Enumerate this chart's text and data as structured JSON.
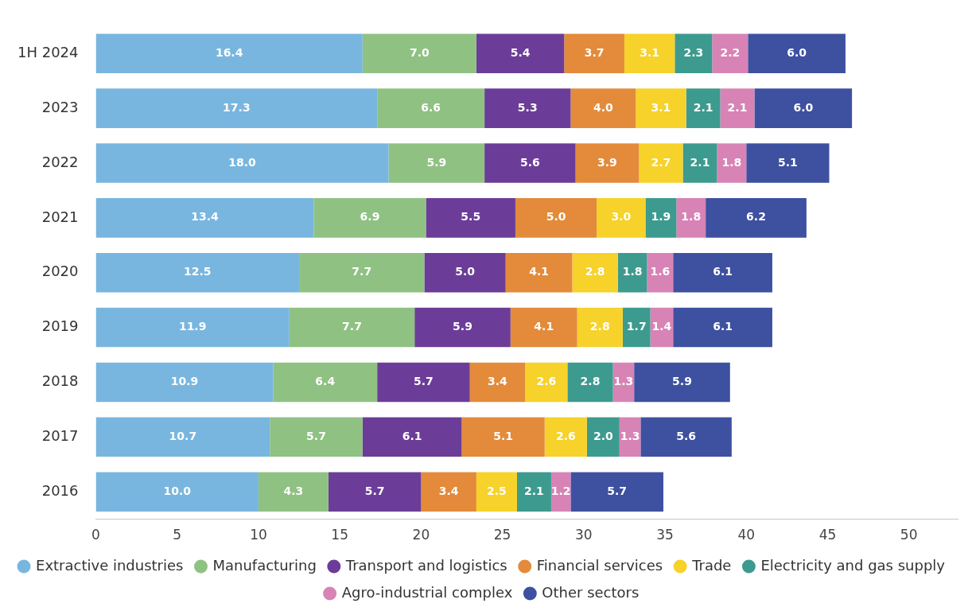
{
  "chart_data": {
    "type": "bar",
    "orientation": "horizontal",
    "stacked": true,
    "legend": "bottom",
    "categories": [
      "1H 2024",
      "2023",
      "2022",
      "2021",
      "2020",
      "2019",
      "2018",
      "2017",
      "2016"
    ],
    "xlim": [
      0,
      53
    ],
    "xticks": [
      0,
      5,
      10,
      15,
      20,
      25,
      30,
      35,
      40,
      45,
      50
    ],
    "series": [
      {
        "name": "Extractive industries",
        "color": "#79b6df",
        "values": [
          16.4,
          17.3,
          18.0,
          13.4,
          12.5,
          11.9,
          10.9,
          10.7,
          10.0
        ],
        "value_labels": [
          "16.4",
          "17.3",
          "18.0",
          "13.4",
          "12.5",
          "11.9",
          "10.9",
          "10.7",
          "10.0"
        ]
      },
      {
        "name": "Manufacturing",
        "color": "#8fc183",
        "values": [
          7.0,
          6.6,
          5.9,
          6.9,
          7.7,
          7.7,
          6.4,
          5.7,
          4.3
        ],
        "value_labels": [
          "7.0",
          "6.6",
          "5.9",
          "6.9",
          "7.7",
          "7.7",
          "6.4",
          "5.7",
          "4.3"
        ]
      },
      {
        "name": "Transport and logistics",
        "color": "#6b3d98",
        "values": [
          5.4,
          5.3,
          5.6,
          5.5,
          5.0,
          5.9,
          5.7,
          6.1,
          5.7
        ],
        "value_labels": [
          "5.4",
          "5.3",
          "5.6",
          "5.5",
          "5.0",
          "5.9",
          "5.7",
          "6.1",
          "5.7"
        ]
      },
      {
        "name": "Financial services",
        "color": "#e38b3b",
        "values": [
          3.7,
          4.0,
          3.9,
          5.0,
          4.1,
          4.1,
          3.4,
          5.1,
          3.4
        ],
        "value_labels": [
          "3.7",
          "4.0",
          "3.9",
          "5.0",
          "4.1",
          "4.1",
          "3.4",
          "5.1",
          "3.4"
        ]
      },
      {
        "name": "Trade",
        "color": "#f6d22a",
        "values": [
          3.1,
          3.1,
          2.7,
          3.0,
          2.8,
          2.8,
          2.6,
          2.6,
          2.5
        ],
        "value_labels": [
          "3.1",
          "3.1",
          "2.7",
          "3.0",
          "2.8",
          "2.8",
          "2.6",
          "2.6",
          "2.5"
        ]
      },
      {
        "name": "Electricity and gas supply",
        "color": "#3d9a8e",
        "values": [
          2.3,
          2.1,
          2.1,
          1.9,
          1.8,
          1.7,
          2.8,
          2.0,
          2.1
        ],
        "value_labels": [
          "2.3",
          "2.1",
          "2.1",
          "1.9",
          "1.8",
          "1.7",
          "2.8",
          "2.0",
          "2.1"
        ]
      },
      {
        "name": "Agro-industrial complex",
        "color": "#d883b5",
        "values": [
          2.2,
          2.1,
          1.8,
          1.8,
          1.6,
          1.4,
          1.3,
          1.3,
          1.2
        ],
        "value_labels": [
          "2.2",
          "2.1",
          "1.8",
          "1.8",
          "1.6",
          "1.4",
          "1.3",
          "1.3",
          "1.2"
        ]
      },
      {
        "name": "Other sectors",
        "color": "#3e50a0",
        "values": [
          6.0,
          6.0,
          5.1,
          6.2,
          6.1,
          6.1,
          5.9,
          5.6,
          5.7
        ],
        "value_labels": [
          "6.0",
          "6.0",
          "5.1",
          "6.2",
          "6.1",
          "6.1",
          "5.9",
          "5.6",
          "5.7"
        ]
      }
    ]
  }
}
